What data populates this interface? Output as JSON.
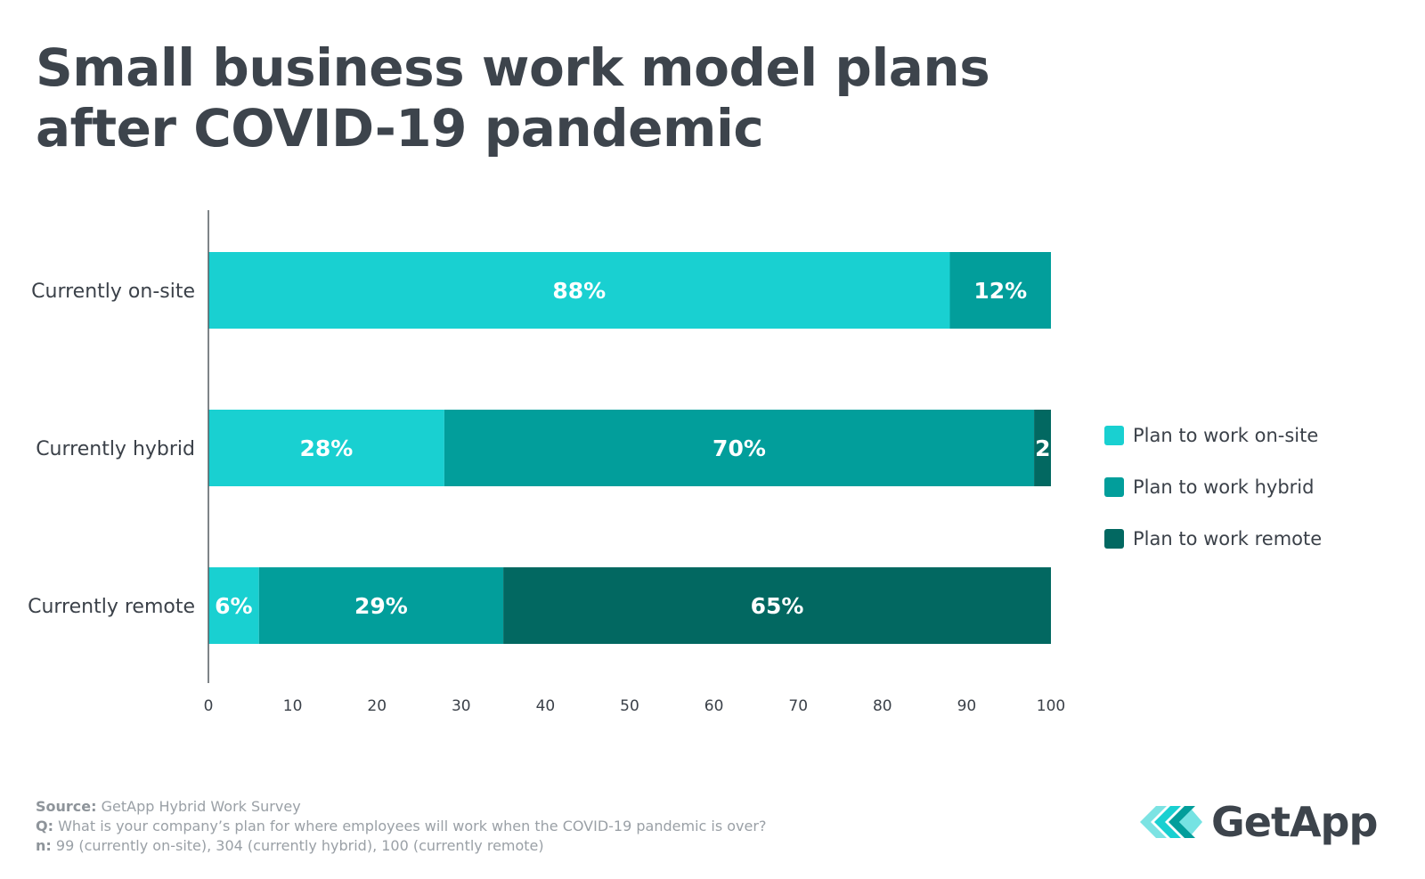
{
  "title_lines": [
    "Small business work model plans",
    "after COVID-19 pandemic"
  ],
  "chart_data": {
    "type": "bar",
    "orientation": "horizontal",
    "stacked": true,
    "categories": [
      "Currently on-site",
      "Currently hybrid",
      "Currently remote"
    ],
    "series": [
      {
        "name": "Plan to work on-site",
        "color": "#19d0d1",
        "values": [
          88,
          28,
          6
        ],
        "labels": [
          "88%",
          "28%",
          "6%"
        ]
      },
      {
        "name": "Plan to work hybrid",
        "color": "#029e9b",
        "values": [
          12,
          70,
          29
        ],
        "labels": [
          "12%",
          "70%",
          "29%"
        ]
      },
      {
        "name": "Plan to work remote",
        "color": "#026861",
        "values": [
          0,
          2,
          65
        ],
        "labels": [
          "",
          "2",
          "65%"
        ]
      }
    ],
    "xlim": [
      0,
      100
    ],
    "xticks": [
      0,
      10,
      20,
      30,
      40,
      50,
      60,
      70,
      80,
      90,
      100
    ],
    "grid": false,
    "legend_position": "right"
  },
  "footnotes": [
    {
      "key": "Source:",
      "text": " GetApp Hybrid Work Survey"
    },
    {
      "key": "Q:",
      "text": " What is your company’s plan for where employees will work when the COVID-19 pandemic is over?"
    },
    {
      "key": "n:",
      "text": " 99 (currently on-site), 304 (currently hybrid), 100 (currently remote)"
    }
  ],
  "logo": {
    "text": "GetApp",
    "icon": "getapp-chevrons-icon"
  }
}
